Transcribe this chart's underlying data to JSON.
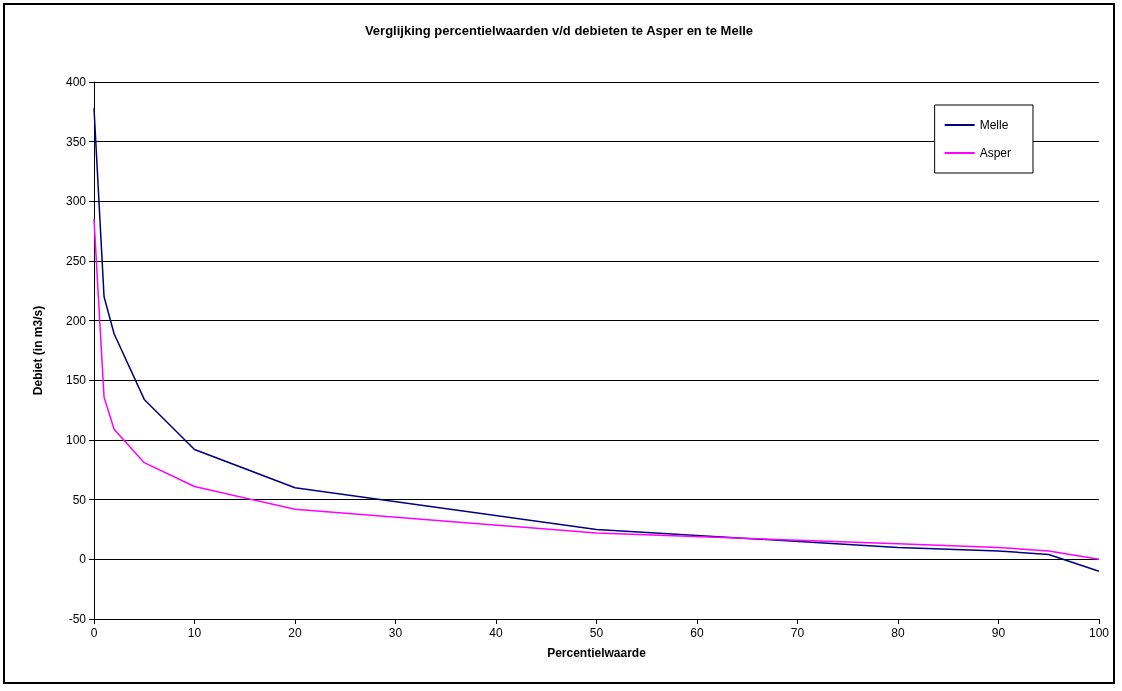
{
  "chart_data": {
    "type": "line",
    "title": "Verglijking percentielwaarden v/d debieten te Asper en te Melle",
    "xlabel": "Percentielwaarde",
    "ylabel": "Debiet (in m3/s)",
    "x": [
      0,
      1,
      2,
      5,
      10,
      20,
      50,
      80,
      90,
      95,
      100
    ],
    "series": [
      {
        "name": "Melle",
        "color": "#000080",
        "values": [
          378,
          220,
          189,
          134,
          92,
          60,
          25,
          10,
          7,
          4,
          -10
        ]
      },
      {
        "name": "Asper",
        "color": "#ff00ff",
        "values": [
          285,
          136,
          109,
          81,
          61,
          42,
          22,
          13,
          10,
          7,
          0
        ]
      }
    ],
    "xlim": [
      0,
      100
    ],
    "xticks": [
      0,
      10,
      20,
      30,
      40,
      50,
      60,
      70,
      80,
      90,
      100
    ],
    "ylim": [
      -50,
      400
    ],
    "yticks": [
      -50,
      0,
      50,
      100,
      150,
      200,
      250,
      300,
      350,
      400
    ],
    "grid": "y",
    "legend": "top right",
    "marker": "none",
    "line_style": "solid"
  }
}
